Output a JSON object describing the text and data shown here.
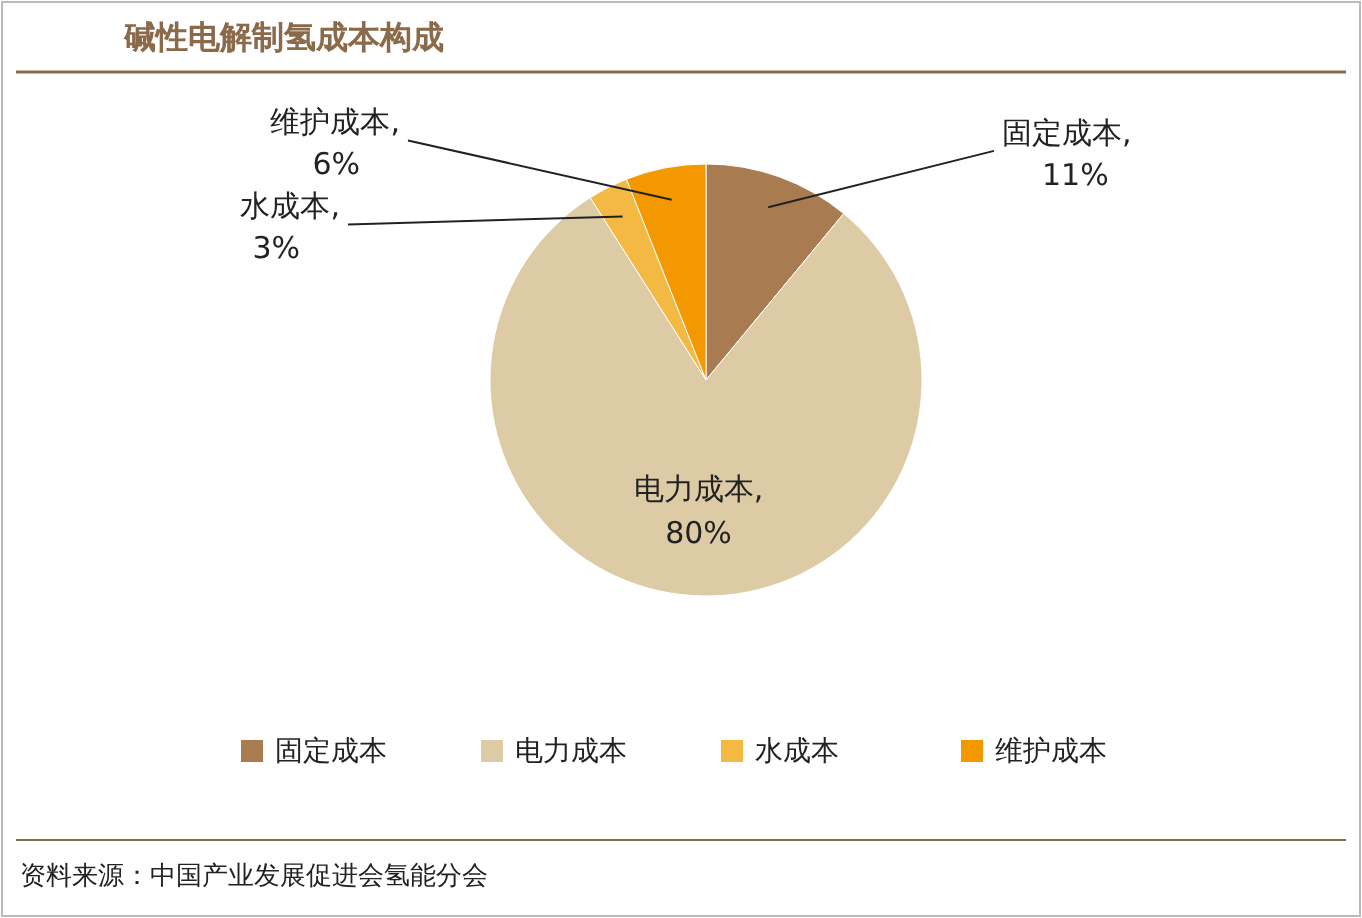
{
  "chart_data": {
    "type": "pie",
    "title": "碱性电解制氢成本构成",
    "categories": [
      "固定成本",
      "电力成本",
      "水成本",
      "维护成本"
    ],
    "values": [
      11,
      80,
      3,
      6
    ],
    "colors": [
      "#a87b51",
      "#dccba5",
      "#f4b942",
      "#f39800"
    ],
    "value_labels": [
      "固定成本,\n11%",
      "电力成本,\n80%",
      "水成本,\n3%",
      "维护成本,\n6%"
    ],
    "legend": "bottom",
    "annotations": [
      "资料来源：中国产业发展促进会氢能分会"
    ]
  }
}
